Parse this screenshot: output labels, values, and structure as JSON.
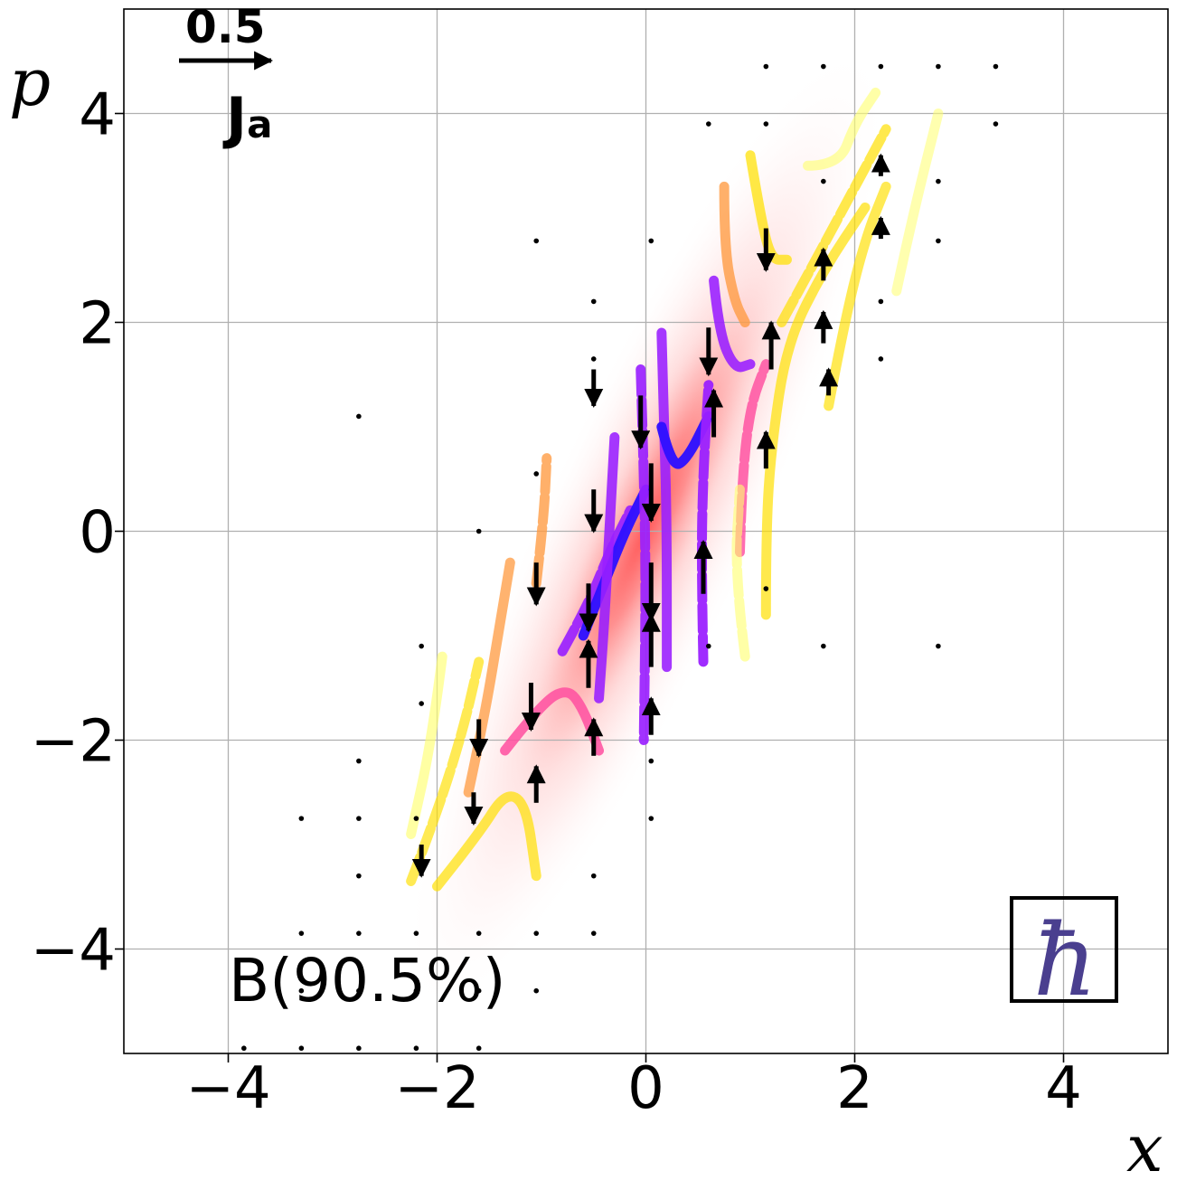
{
  "chart_data": {
    "type": "scatter",
    "subtype": "phase-space quiver over Wigner density with current streamlines",
    "xlabel": "x",
    "ylabel": "p",
    "xlim": [
      -5,
      5
    ],
    "ylim": [
      -5,
      5
    ],
    "xticks": [
      -4,
      -2,
      0,
      2,
      4
    ],
    "yticks": [
      -4,
      -2,
      0,
      2,
      4
    ],
    "xtick_labels": [
      "−4",
      "−2",
      "0",
      "2",
      "4"
    ],
    "ytick_labels": [
      "−4",
      "−2",
      "0",
      "2",
      "4"
    ],
    "grid": true,
    "annotation": "B(90.5%)",
    "scale_arrow": {
      "value_label": "0.5",
      "symbol": "J",
      "subscript": "a",
      "length": 0.5
    },
    "hbar_symbol": "ħ",
    "density": {
      "center": [
        0,
        0
      ],
      "major_axis_slope": 2.2,
      "sigma_major": 2.7,
      "sigma_minor": 0.32,
      "color": "#ff5a5a"
    },
    "colors": {
      "density": "#ff6060",
      "stream_low": "#ffff70",
      "stream_mid": "#ff9a40",
      "stream_high": "#ff50a0",
      "stream_peak": "#3010ff",
      "arrows": "#000000",
      "hbar_box": "#000000",
      "hbar": "#4a3f8f"
    },
    "streamlines": [
      {
        "points": [
          [
            -2.25,
            -3.35
          ],
          [
            -2.0,
            -2.7
          ],
          [
            -1.75,
            -1.9
          ],
          [
            -1.6,
            -1.25
          ]
        ],
        "level": 0.4
      },
      {
        "points": [
          [
            -1.95,
            -1.2
          ],
          [
            -2.05,
            -2.0
          ],
          [
            -2.25,
            -2.9
          ]
        ],
        "level": 0.35
      },
      {
        "points": [
          [
            -1.7,
            -2.5
          ],
          [
            -1.55,
            -1.8
          ],
          [
            -1.4,
            -0.9
          ],
          [
            -1.3,
            -0.3
          ]
        ],
        "level": 0.55
      },
      {
        "points": [
          [
            -1.05,
            -0.5
          ],
          [
            -0.98,
            0.1
          ],
          [
            -0.95,
            0.7
          ]
        ],
        "level": 0.6
      },
      {
        "points": [
          [
            -2.0,
            -3.4
          ],
          [
            -1.6,
            -2.9
          ],
          [
            -1.35,
            -2.5
          ],
          [
            -1.15,
            -2.6
          ],
          [
            -1.05,
            -3.3
          ]
        ],
        "level": 0.45
      },
      {
        "points": [
          [
            -1.35,
            -2.1
          ],
          [
            -1.0,
            -1.65
          ],
          [
            -0.75,
            -1.5
          ],
          [
            -0.6,
            -1.7
          ],
          [
            -0.45,
            -2.1
          ]
        ],
        "level": 0.75
      },
      {
        "points": [
          [
            -0.8,
            -1.15
          ],
          [
            -0.55,
            -0.7
          ],
          [
            -0.35,
            -0.2
          ],
          [
            -0.15,
            0.2
          ]
        ],
        "level": 0.85
      },
      {
        "points": [
          [
            -0.6,
            -1.0
          ],
          [
            -0.4,
            -0.5
          ],
          [
            -0.2,
            0.0
          ],
          [
            0.0,
            0.4
          ]
        ],
        "level": 0.95
      },
      {
        "points": [
          [
            -0.3,
            0.9
          ],
          [
            -0.35,
            0.0
          ],
          [
            -0.4,
            -0.9
          ],
          [
            -0.45,
            -1.6
          ]
        ],
        "level": 0.8
      },
      {
        "points": [
          [
            -0.05,
            1.55
          ],
          [
            -0.02,
            0.6
          ],
          [
            0.0,
            -0.5
          ],
          [
            -0.02,
            -2.0
          ]
        ],
        "level": 0.85
      },
      {
        "points": [
          [
            0.15,
            1.9
          ],
          [
            0.18,
            0.9
          ],
          [
            0.2,
            0.0
          ],
          [
            0.2,
            -1.3
          ]
        ],
        "level": 0.8
      },
      {
        "points": [
          [
            0.15,
            1.0
          ],
          [
            0.25,
            0.6
          ],
          [
            0.4,
            0.7
          ],
          [
            0.6,
            1.1
          ]
        ],
        "level": 0.95
      },
      {
        "points": [
          [
            0.55,
            -1.25
          ],
          [
            0.53,
            -0.3
          ],
          [
            0.55,
            0.6
          ],
          [
            0.6,
            1.4
          ]
        ],
        "level": 0.9
      },
      {
        "points": [
          [
            0.65,
            2.4
          ],
          [
            0.7,
            1.9
          ],
          [
            0.85,
            1.55
          ],
          [
            1.0,
            1.6
          ]
        ],
        "level": 0.8
      },
      {
        "points": [
          [
            0.75,
            3.3
          ],
          [
            0.75,
            2.7
          ],
          [
            0.85,
            2.2
          ],
          [
            0.95,
            2.0
          ]
        ],
        "level": 0.6
      },
      {
        "points": [
          [
            0.9,
            -0.2
          ],
          [
            0.92,
            0.5
          ],
          [
            1.0,
            1.2
          ],
          [
            1.15,
            1.6
          ]
        ],
        "level": 0.7
      },
      {
        "points": [
          [
            1.15,
            -0.8
          ],
          [
            1.15,
            0.0
          ],
          [
            1.2,
            0.8
          ],
          [
            1.35,
            1.8
          ],
          [
            1.7,
            2.5
          ],
          [
            2.1,
            3.1
          ]
        ],
        "level": 0.45
      },
      {
        "points": [
          [
            1.0,
            3.6
          ],
          [
            1.1,
            3.0
          ],
          [
            1.2,
            2.6
          ],
          [
            1.35,
            2.6
          ]
        ],
        "level": 0.5
      },
      {
        "points": [
          [
            1.3,
            2.0
          ],
          [
            1.6,
            2.55
          ],
          [
            1.95,
            3.2
          ],
          [
            2.3,
            3.85
          ]
        ],
        "level": 0.45
      },
      {
        "points": [
          [
            1.75,
            1.2
          ],
          [
            1.9,
            2.0
          ],
          [
            2.1,
            2.8
          ],
          [
            2.3,
            3.3
          ]
        ],
        "level": 0.4
      },
      {
        "points": [
          [
            1.55,
            3.5
          ],
          [
            1.85,
            3.5
          ],
          [
            2.0,
            3.9
          ],
          [
            2.2,
            4.2
          ]
        ],
        "level": 0.3
      },
      {
        "points": [
          [
            0.95,
            -1.2
          ],
          [
            0.85,
            -0.4
          ],
          [
            0.9,
            0.4
          ]
        ],
        "level": 0.3
      },
      {
        "points": [
          [
            2.4,
            2.3
          ],
          [
            2.55,
            3.0
          ],
          [
            2.8,
            4.0
          ]
        ],
        "level": 0.2
      }
    ],
    "arrows": [
      {
        "x": -0.5,
        "y": 1.55,
        "u": 0.0,
        "v": -0.35
      },
      {
        "x": -0.5,
        "y": 0.4,
        "u": 0.0,
        "v": -0.4
      },
      {
        "x": -0.55,
        "y": -0.5,
        "u": 0.0,
        "v": -0.45
      },
      {
        "x": -0.55,
        "y": -1.5,
        "u": 0.0,
        "v": 0.45
      },
      {
        "x": -0.5,
        "y": -2.15,
        "u": 0.0,
        "v": 0.35
      },
      {
        "x": -0.05,
        "y": 1.3,
        "u": 0.0,
        "v": -0.5
      },
      {
        "x": 0.05,
        "y": 0.65,
        "u": 0.0,
        "v": -0.55
      },
      {
        "x": 0.05,
        "y": -0.3,
        "u": 0.0,
        "v": -0.55
      },
      {
        "x": 0.05,
        "y": -1.3,
        "u": 0.0,
        "v": 0.5
      },
      {
        "x": 0.05,
        "y": -1.95,
        "u": 0.0,
        "v": 0.35
      },
      {
        "x": 0.6,
        "y": 1.95,
        "u": 0.0,
        "v": -0.45
      },
      {
        "x": 0.65,
        "y": 0.9,
        "u": 0.0,
        "v": 0.45
      },
      {
        "x": 0.55,
        "y": -0.6,
        "u": 0.0,
        "v": 0.5
      },
      {
        "x": 1.15,
        "y": 2.9,
        "u": 0.0,
        "v": -0.4
      },
      {
        "x": 1.2,
        "y": 1.55,
        "u": 0.0,
        "v": 0.45
      },
      {
        "x": 1.15,
        "y": 0.6,
        "u": 0.0,
        "v": 0.35
      },
      {
        "x": -1.05,
        "y": -0.3,
        "u": 0.0,
        "v": -0.4
      },
      {
        "x": -1.1,
        "y": -1.45,
        "u": 0.0,
        "v": -0.45
      },
      {
        "x": -1.05,
        "y": -2.6,
        "u": 0.0,
        "v": 0.35
      },
      {
        "x": -1.6,
        "y": -1.8,
        "u": 0.0,
        "v": -0.35
      },
      {
        "x": -1.65,
        "y": -2.5,
        "u": 0.0,
        "v": -0.3
      },
      {
        "x": -2.15,
        "y": -3.0,
        "u": 0.0,
        "v": -0.3
      },
      {
        "x": 1.7,
        "y": 2.4,
        "u": 0.0,
        "v": 0.3
      },
      {
        "x": 1.7,
        "y": 1.8,
        "u": 0.0,
        "v": 0.3
      },
      {
        "x": 1.75,
        "y": 1.3,
        "u": 0.0,
        "v": 0.25
      },
      {
        "x": 2.25,
        "y": 2.8,
        "u": 0.0,
        "v": 0.2
      },
      {
        "x": 2.25,
        "y": 3.4,
        "u": 0.0,
        "v": 0.2
      }
    ],
    "dots": [
      [
        -2.75,
        1.1
      ],
      [
        -1.05,
        2.78
      ],
      [
        -0.5,
        2.2
      ],
      [
        -0.5,
        1.65
      ],
      [
        0.05,
        2.78
      ],
      [
        0.6,
        3.9
      ],
      [
        1.15,
        4.45
      ],
      [
        1.7,
        4.45
      ],
      [
        2.25,
        4.45
      ],
      [
        2.8,
        4.45
      ],
      [
        3.35,
        4.45
      ],
      [
        3.35,
        3.9
      ],
      [
        2.8,
        3.35
      ],
      [
        2.8,
        2.78
      ],
      [
        2.25,
        2.2
      ],
      [
        2.25,
        1.65
      ],
      [
        1.7,
        3.35
      ],
      [
        1.15,
        3.9
      ],
      [
        -1.6,
        0.0
      ],
      [
        -1.05,
        0.55
      ],
      [
        1.15,
        -0.55
      ],
      [
        1.7,
        -1.1
      ],
      [
        2.8,
        -1.1
      ],
      [
        0.6,
        -1.1
      ],
      [
        -2.15,
        -1.1
      ],
      [
        -2.15,
        -1.65
      ],
      [
        -2.75,
        -2.2
      ],
      [
        -3.3,
        -2.75
      ],
      [
        -2.75,
        -2.75
      ],
      [
        -2.75,
        -3.3
      ],
      [
        -2.2,
        -2.75
      ],
      [
        -2.2,
        -3.85
      ],
      [
        -1.6,
        -3.85
      ],
      [
        -1.6,
        -4.4
      ],
      [
        -1.05,
        -3.85
      ],
      [
        -1.05,
        -4.4
      ],
      [
        -0.5,
        -3.85
      ],
      [
        -0.5,
        -3.3
      ],
      [
        0.05,
        -2.75
      ],
      [
        0.05,
        -2.2
      ],
      [
        -3.3,
        -3.85
      ],
      [
        -2.75,
        -3.85
      ],
      [
        -3.3,
        -4.4
      ],
      [
        -2.75,
        -4.4
      ],
      [
        -2.2,
        -4.4
      ],
      [
        -3.85,
        -4.95
      ],
      [
        -3.3,
        -4.95
      ],
      [
        -2.75,
        -4.95
      ],
      [
        -2.2,
        -4.95
      ],
      [
        -1.6,
        -4.95
      ]
    ]
  }
}
